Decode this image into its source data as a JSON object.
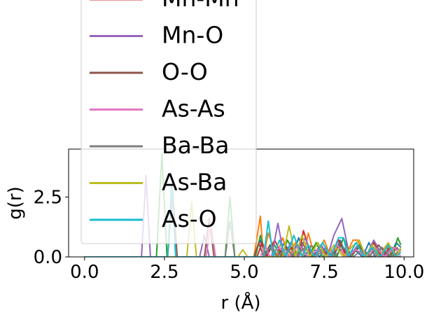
{
  "chart_data": {
    "type": "line",
    "title": "",
    "xlabel": "r (Å)",
    "ylabel": "g(r)",
    "xlim": [
      -0.5,
      10.3
    ],
    "ylim": [
      0,
      4.5
    ],
    "xticks": [
      0.0,
      2.5,
      5.0,
      7.5,
      10.0
    ],
    "xtick_labels": [
      "0.0",
      "2.5",
      "5.0",
      "7.5",
      "10.0"
    ],
    "yticks": [
      0.0,
      2.5
    ],
    "ytick_labels": [
      "0.0",
      "2.5"
    ],
    "grid": false,
    "legend_position": "upper-left",
    "series": [
      {
        "name": "",
        "color": "#1f77b4",
        "x": [
          0,
          5.3,
          5.5,
          5.65,
          5.85,
          6.05,
          6.25,
          6.5,
          6.7,
          6.9,
          7.1,
          7.35,
          7.55,
          7.8,
          8.0,
          8.2,
          8.45,
          8.7,
          8.9,
          9.1,
          9.3,
          9.55,
          9.75,
          9.9
        ],
        "y": [
          0,
          0,
          0.7,
          0,
          0.5,
          0,
          0.6,
          0,
          0.8,
          0,
          0.5,
          0,
          0.4,
          0,
          0.7,
          0,
          0.3,
          0,
          0.6,
          0,
          0.4,
          0,
          0.6,
          0.4
        ]
      },
      {
        "name": "",
        "color": "#ff7f0e",
        "x": [
          0,
          5.3,
          5.5,
          5.6,
          5.75,
          6.0,
          6.2,
          6.4,
          6.6,
          6.85,
          7.0,
          7.2,
          7.5,
          7.7,
          7.9,
          8.15,
          8.4,
          8.55,
          8.75,
          9.0,
          9.2,
          9.45,
          9.7,
          9.9
        ],
        "y": [
          0,
          0,
          1.7,
          0,
          1.0,
          0,
          0.8,
          0,
          0.6,
          0,
          1.0,
          0,
          0.7,
          0,
          0.5,
          0,
          0.7,
          0.7,
          0,
          0.4,
          0,
          0.5,
          0,
          0.3
        ]
      },
      {
        "name": "",
        "color": "#2ca02c",
        "x": [
          0,
          2.25,
          2.42,
          2.58,
          4.4,
          4.55,
          4.7,
          5.35,
          5.5,
          5.7,
          5.9,
          6.15,
          6.35,
          6.6,
          6.8,
          7.0,
          7.25,
          7.45,
          7.7,
          7.9,
          8.1,
          8.35,
          8.6,
          8.85,
          9.05,
          9.25,
          9.45,
          9.65,
          9.8,
          9.9
        ],
        "y": [
          0,
          0,
          4.3,
          0,
          0,
          2.5,
          0,
          0,
          0.9,
          0,
          0.6,
          0,
          0.7,
          0,
          0.4,
          0,
          0.6,
          0,
          0.3,
          0,
          0.8,
          0,
          0.5,
          0,
          0.6,
          0,
          0.4,
          0,
          0.8,
          0.5
        ]
      },
      {
        "name": "Mn-Mn",
        "color": "#d62728",
        "x": [
          0,
          5.4,
          5.55,
          5.7,
          5.95,
          6.2,
          6.5,
          6.7,
          6.85,
          7.1,
          7.4,
          7.65,
          7.95,
          8.2,
          8.5,
          8.8,
          9.05,
          9.3,
          9.55,
          9.8,
          9.9
        ],
        "y": [
          0,
          0,
          0.6,
          0,
          0.7,
          0,
          0.4,
          0,
          1.1,
          0,
          0.5,
          0,
          0.7,
          0,
          0.3,
          0,
          0.6,
          0,
          0.4,
          0,
          0
        ]
      },
      {
        "name": "Mn-O",
        "color": "#9467bd",
        "x": [
          0,
          1.78,
          1.92,
          2.06,
          3.6,
          3.75,
          3.9,
          5.85,
          6.05,
          6.25,
          6.45,
          6.7,
          6.9,
          7.15,
          7.4,
          7.6,
          7.8,
          8.05,
          8.3,
          8.55,
          8.8,
          9.05,
          9.35,
          9.6,
          9.85
        ],
        "y": [
          0,
          0,
          3.4,
          0,
          0,
          0.9,
          0,
          0,
          1.4,
          0,
          0.6,
          0,
          0.8,
          0,
          0.5,
          0,
          0.9,
          1.6,
          0,
          0.5,
          0,
          0.7,
          0,
          0.4,
          0.3
        ]
      },
      {
        "name": "O-O",
        "color": "#8c564b",
        "x": [
          0,
          2.6,
          2.75,
          2.9,
          3.75,
          3.9,
          4.05,
          5.3,
          5.45,
          5.6,
          5.8,
          6.0,
          6.3,
          6.55,
          6.8,
          7.1,
          7.4,
          7.7,
          8.0,
          8.3,
          8.6,
          8.9,
          9.2,
          9.5,
          9.8
        ],
        "y": [
          0,
          0,
          2.8,
          0,
          0,
          1.6,
          0,
          0,
          0.6,
          0,
          0.5,
          0,
          0.4,
          0,
          0.6,
          0,
          0.3,
          0,
          0.5,
          0,
          0.4,
          0,
          0.5,
          0,
          0.4
        ]
      },
      {
        "name": "As-As",
        "color": "#e377c2",
        "x": [
          0,
          3.8,
          3.95,
          4.1,
          5.5,
          5.65,
          5.8,
          6.1,
          6.4,
          6.7,
          7.0,
          7.3,
          7.6,
          7.9,
          8.2,
          8.5,
          8.8,
          9.1,
          9.4,
          9.7,
          9.9
        ],
        "y": [
          0,
          0,
          1.4,
          0,
          0,
          0.5,
          0,
          0.4,
          0,
          0.5,
          0,
          0.3,
          0,
          0.5,
          0,
          0.3,
          0,
          0.4,
          0,
          0.4,
          0
        ]
      },
      {
        "name": "Ba-Ba",
        "color": "#7f7f7f",
        "x": [
          0,
          4.4,
          4.55,
          4.7,
          5.6,
          5.8,
          6.0,
          6.3,
          6.6,
          6.9,
          7.2,
          7.5,
          7.8,
          8.1,
          8.4,
          8.7,
          9.0,
          9.3,
          9.6,
          9.9
        ],
        "y": [
          0,
          0,
          1.5,
          0,
          0,
          0.4,
          0,
          0.3,
          0,
          0.4,
          0,
          0.3,
          0,
          0.4,
          0,
          0.3,
          0,
          0.4,
          0,
          0.3
        ]
      },
      {
        "name": "As-Ba",
        "color": "#bcbd22",
        "x": [
          0,
          3.2,
          3.35,
          3.5,
          4.8,
          4.95,
          5.1,
          6.2,
          6.4,
          6.6,
          6.8,
          7.05,
          7.3,
          7.55,
          7.8,
          8.1,
          8.35,
          8.6,
          8.8,
          9.0,
          9.25,
          9.5,
          9.75,
          9.9
        ],
        "y": [
          0,
          0,
          2.3,
          0,
          0,
          0.3,
          0,
          0,
          1.3,
          0,
          0.9,
          0,
          0.6,
          0,
          0.5,
          0,
          0.4,
          0.7,
          0,
          0.5,
          0,
          0.6,
          0,
          0.4
        ]
      },
      {
        "name": "As-O",
        "color": "#17becf",
        "x": [
          0,
          2.6,
          2.72,
          2.85,
          5.6,
          5.75,
          5.9,
          6.1,
          6.3,
          6.55,
          6.8,
          7.0,
          7.2,
          7.45,
          7.7,
          7.95,
          8.1,
          8.25,
          8.5,
          8.75,
          9.0,
          9.25,
          9.5,
          9.75,
          9.9
        ],
        "y": [
          0,
          0,
          3.1,
          0,
          0,
          1.5,
          0,
          0.7,
          0,
          0.9,
          0,
          0.5,
          0,
          0.6,
          0,
          0.8,
          0.8,
          0,
          0.6,
          0,
          0.4,
          0,
          0.5,
          0,
          0.2
        ]
      }
    ]
  }
}
